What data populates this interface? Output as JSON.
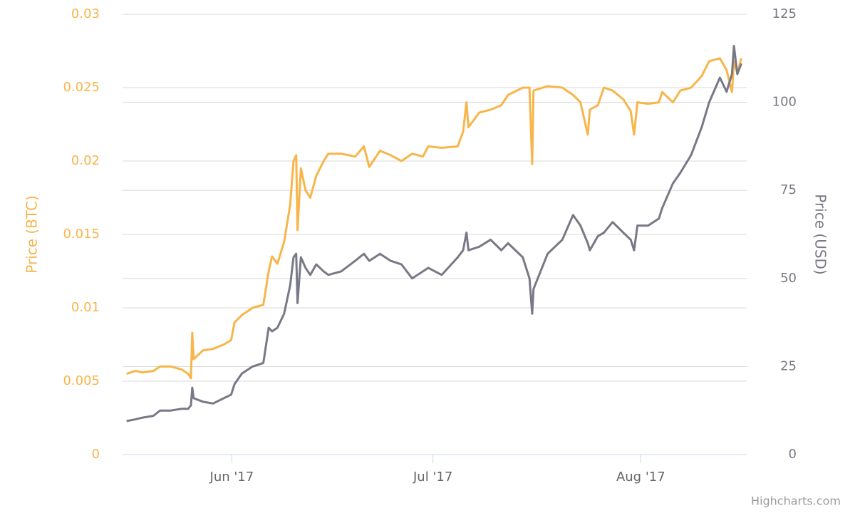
{
  "chart_data": {
    "type": "line",
    "y_label": "Price (BTC)",
    "y2_label": "Price (USD)",
    "credit": "Highcharts.com",
    "x": [
      136.3,
      137.6,
      138.7,
      140.3,
      141.3,
      142.9,
      144.5,
      145.5,
      145.9,
      146.1,
      146.3,
      147.7,
      149.2,
      150.8,
      151.9,
      152.4,
      153.5,
      155.1,
      156.7,
      157.5,
      158.0,
      158.8,
      159.8,
      160.7,
      161.2,
      161.6,
      161.8,
      162.3,
      163.0,
      163.7,
      164.6,
      165.7,
      166.4,
      168.3,
      170.4,
      171.7,
      172.5,
      174.1,
      175.7,
      177.3,
      178.9,
      180.5,
      181.3,
      183.3,
      185.7,
      186.5,
      187.0,
      187.3,
      188.9,
      190.6,
      192.2,
      193.2,
      195.4,
      196.4,
      196.8,
      197.0,
      199.1,
      201.3,
      202.9,
      204.0,
      205.1,
      205.4,
      206.6,
      207.5,
      208.8,
      210.4,
      211.5,
      212.0,
      212.5,
      214.1,
      215.7,
      216.2,
      217.8,
      218.9,
      220.5,
      222.1,
      223.2,
      224.8,
      225.8,
      226.6,
      226.9,
      227.4,
      228.0
    ],
    "xlim": [
      135.7,
      228.8
    ],
    "xticks": [
      {
        "value": 152,
        "label": "Jun '17"
      },
      {
        "value": 182,
        "label": "Jul '17"
      },
      {
        "value": 213,
        "label": "Aug '17"
      }
    ],
    "ylim": [
      0,
      0.03
    ],
    "yticks": [
      0,
      0.005,
      0.01,
      0.015,
      0.02,
      0.025,
      0.03
    ],
    "y2lim": [
      0,
      125
    ],
    "y2ticks": [
      0,
      25,
      50,
      75,
      100,
      125
    ],
    "grid": true,
    "series": [
      {
        "color": "#f7b54a",
        "axis": "y",
        "values": [
          0.0055,
          0.0057,
          0.0056,
          0.0057,
          0.006,
          0.006,
          0.0058,
          0.0055,
          0.0052,
          0.0083,
          0.0065,
          0.0071,
          0.0072,
          0.0075,
          0.0078,
          0.009,
          0.0095,
          0.01,
          0.0102,
          0.0125,
          0.0135,
          0.013,
          0.0145,
          0.017,
          0.02,
          0.0204,
          0.0153,
          0.0195,
          0.018,
          0.0175,
          0.019,
          0.02,
          0.0205,
          0.0205,
          0.0203,
          0.021,
          0.0196,
          0.0207,
          0.0204,
          0.02,
          0.0205,
          0.0203,
          0.021,
          0.0209,
          0.021,
          0.022,
          0.024,
          0.0223,
          0.0233,
          0.0235,
          0.0238,
          0.0245,
          0.025,
          0.025,
          0.0198,
          0.0248,
          0.0251,
          0.025,
          0.0245,
          0.024,
          0.0218,
          0.0235,
          0.0238,
          0.025,
          0.0248,
          0.0242,
          0.0234,
          0.0218,
          0.024,
          0.0239,
          0.024,
          0.0247,
          0.024,
          0.0248,
          0.025,
          0.0258,
          0.0268,
          0.027,
          0.0262,
          0.0247,
          0.0268,
          0.026,
          0.027
        ]
      },
      {
        "color": "#787886",
        "axis": "y2",
        "values": [
          9.5,
          10,
          10.5,
          11,
          12.5,
          12.5,
          13,
          13,
          14,
          19,
          16,
          15,
          14.5,
          16,
          17,
          20,
          23,
          25,
          26,
          36,
          35,
          36,
          40,
          48,
          56,
          57,
          43,
          56,
          53,
          51,
          54,
          52,
          51,
          52,
          55,
          57,
          55,
          57,
          55,
          54,
          50,
          52,
          53,
          51,
          56,
          58,
          63,
          58,
          59,
          61,
          58,
          60,
          56,
          50,
          40,
          47,
          57,
          61,
          68,
          65,
          60,
          58,
          62,
          63,
          66,
          63,
          61,
          58,
          65,
          65,
          67,
          70,
          77,
          80,
          85,
          93,
          100,
          107,
          103,
          108,
          116,
          108,
          111
        ]
      }
    ]
  }
}
